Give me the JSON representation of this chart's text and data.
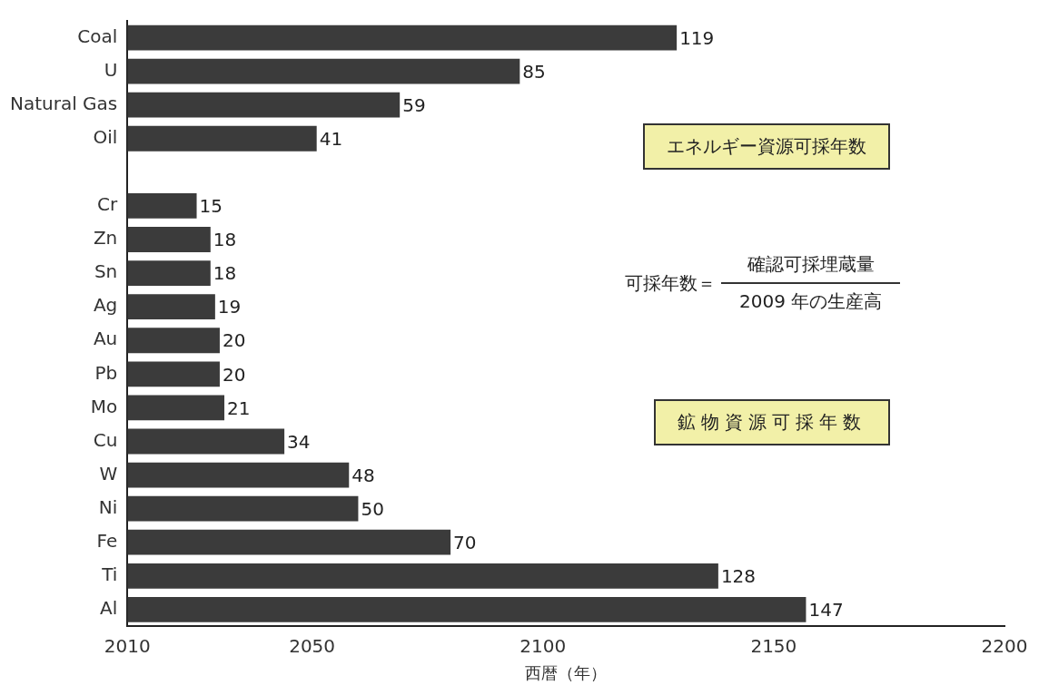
{
  "chart_data": {
    "type": "bar",
    "orientation": "horizontal",
    "xlabel": "西暦（年）",
    "categories": [
      "Coal",
      "U",
      "Natural Gas",
      "Oil",
      null,
      "Cr",
      "Zn",
      "Sn",
      "Ag",
      "Au",
      "Pb",
      "Mo",
      "Cu",
      "W",
      "Ni",
      "Fe",
      "Ti",
      "Al"
    ],
    "values": [
      119,
      85,
      59,
      41,
      null,
      15,
      18,
      18,
      19,
      20,
      20,
      21,
      34,
      48,
      50,
      70,
      128,
      147
    ],
    "base": [
      2010,
      2010,
      2010,
      2010,
      null,
      2010,
      2010,
      2010,
      2010,
      2010,
      2010,
      2010,
      2010,
      2010,
      2010,
      2010,
      2010,
      2010
    ],
    "color": "#3b3b3b",
    "xlim": [
      2010,
      2200
    ],
    "xticks": [
      2010,
      2050,
      2100,
      2150,
      2200
    ],
    "data_labels": true,
    "grid": false,
    "legend": false,
    "annotations": [
      "エネルギー資源可採年数",
      "鉱物資源可採年数",
      "可採年数＝",
      "確認可採埋蔵量",
      "2009 年の生産高"
    ]
  }
}
